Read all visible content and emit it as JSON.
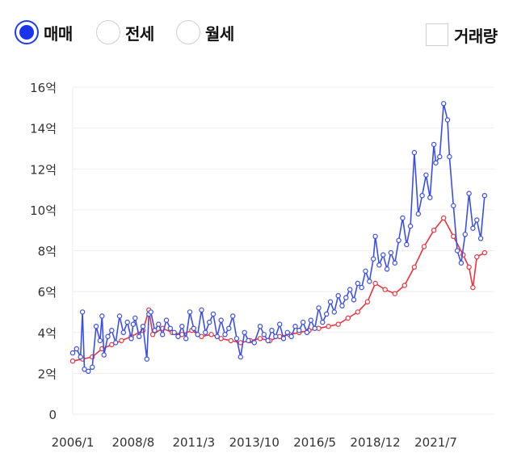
{
  "controls": {
    "radios": [
      {
        "label": "매매",
        "selected": true
      },
      {
        "label": "전세",
        "selected": false
      },
      {
        "label": "월세",
        "selected": false
      }
    ],
    "volume_checkbox": {
      "label": "거래량",
      "checked": false
    }
  },
  "colors": {
    "series_blue": "#3b4fe8",
    "series_red": "#e8343e",
    "grid": "#eeeeee",
    "axis_text": "#333333"
  },
  "chart_data": {
    "type": "line",
    "x_ticks": [
      "2006/1",
      "2008/8",
      "2011/3",
      "2013/10",
      "2016/5",
      "2018/12",
      "2021/7"
    ],
    "y_ticks": [
      "0",
      "2억",
      "4억",
      "6억",
      "8억",
      "10억",
      "12억",
      "14억",
      "16억"
    ],
    "ylim": [
      0,
      16
    ],
    "xlim": [
      "2006/1",
      "2024/1"
    ],
    "grid": true,
    "series": [
      {
        "color": "#3b4fe8",
        "points": [
          [
            "2006/1",
            3.0
          ],
          [
            "2006/3",
            3.2
          ],
          [
            "2006/5",
            2.8
          ],
          [
            "2006/6",
            5.0
          ],
          [
            "2006/7",
            2.2
          ],
          [
            "2006/9",
            2.1
          ],
          [
            "2006/11",
            2.3
          ],
          [
            "2007/1",
            4.3
          ],
          [
            "2007/3",
            3.6
          ],
          [
            "2007/4",
            4.8
          ],
          [
            "2007/5",
            2.9
          ],
          [
            "2007/7",
            3.8
          ],
          [
            "2007/9",
            4.1
          ],
          [
            "2007/11",
            3.5
          ],
          [
            "2008/1",
            4.8
          ],
          [
            "2008/3",
            4.0
          ],
          [
            "2008/5",
            4.5
          ],
          [
            "2008/7",
            3.7
          ],
          [
            "2008/8",
            4.4
          ],
          [
            "2008/9",
            4.7
          ],
          [
            "2008/11",
            3.8
          ],
          [
            "2009/1",
            4.3
          ],
          [
            "2009/3",
            2.7
          ],
          [
            "2009/4",
            4.9
          ],
          [
            "2009/5",
            5.0
          ],
          [
            "2009/7",
            4.1
          ],
          [
            "2009/9",
            4.4
          ],
          [
            "2009/11",
            3.9
          ],
          [
            "2010/1",
            4.6
          ],
          [
            "2010/3",
            4.2
          ],
          [
            "2010/5",
            4.0
          ],
          [
            "2010/7",
            3.8
          ],
          [
            "2010/9",
            4.3
          ],
          [
            "2010/11",
            3.7
          ],
          [
            "2011/1",
            5.0
          ],
          [
            "2011/3",
            4.2
          ],
          [
            "2011/5",
            3.9
          ],
          [
            "2011/7",
            5.1
          ],
          [
            "2011/9",
            4.0
          ],
          [
            "2011/11",
            4.5
          ],
          [
            "2012/1",
            4.9
          ],
          [
            "2012/3",
            3.8
          ],
          [
            "2012/5",
            4.6
          ],
          [
            "2012/7",
            3.9
          ],
          [
            "2012/9",
            4.2
          ],
          [
            "2012/11",
            4.8
          ],
          [
            "2013/1",
            3.7
          ],
          [
            "2013/3",
            2.8
          ],
          [
            "2013/5",
            4.0
          ],
          [
            "2013/7",
            3.6
          ],
          [
            "2013/10",
            3.5
          ],
          [
            "2014/1",
            4.3
          ],
          [
            "2014/3",
            3.9
          ],
          [
            "2014/5",
            3.6
          ],
          [
            "2014/7",
            4.1
          ],
          [
            "2014/9",
            3.8
          ],
          [
            "2014/11",
            4.4
          ],
          [
            "2015/1",
            3.7
          ],
          [
            "2015/3",
            4.0
          ],
          [
            "2015/5",
            3.8
          ],
          [
            "2015/7",
            4.3
          ],
          [
            "2015/9",
            4.1
          ],
          [
            "2015/11",
            4.5
          ],
          [
            "2016/1",
            4.0
          ],
          [
            "2016/3",
            4.6
          ],
          [
            "2016/5",
            4.2
          ],
          [
            "2016/7",
            5.2
          ],
          [
            "2016/9",
            4.5
          ],
          [
            "2016/11",
            4.9
          ],
          [
            "2017/1",
            5.5
          ],
          [
            "2017/3",
            5.0
          ],
          [
            "2017/5",
            5.8
          ],
          [
            "2017/7",
            5.3
          ],
          [
            "2017/9",
            5.7
          ],
          [
            "2017/11",
            6.1
          ],
          [
            "2018/1",
            5.6
          ],
          [
            "2018/3",
            6.4
          ],
          [
            "2018/5",
            6.2
          ],
          [
            "2018/7",
            7.0
          ],
          [
            "2018/9",
            6.5
          ],
          [
            "2018/11",
            7.6
          ],
          [
            "2018/12",
            8.7
          ],
          [
            "2019/2",
            7.3
          ],
          [
            "2019/4",
            7.8
          ],
          [
            "2019/6",
            7.1
          ],
          [
            "2019/8",
            7.9
          ],
          [
            "2019/10",
            7.4
          ],
          [
            "2019/12",
            8.5
          ],
          [
            "2020/2",
            9.6
          ],
          [
            "2020/4",
            8.3
          ],
          [
            "2020/6",
            9.2
          ],
          [
            "2020/8",
            12.8
          ],
          [
            "2020/10",
            9.8
          ],
          [
            "2020/12",
            10.7
          ],
          [
            "2021/2",
            11.7
          ],
          [
            "2021/4",
            10.6
          ],
          [
            "2021/6",
            13.2
          ],
          [
            "2021/7",
            12.3
          ],
          [
            "2021/9",
            12.6
          ],
          [
            "2021/11",
            15.2
          ],
          [
            "2022/1",
            14.4
          ],
          [
            "2022/2",
            12.6
          ],
          [
            "2022/4",
            10.2
          ],
          [
            "2022/6",
            8.0
          ],
          [
            "2022/8",
            7.4
          ],
          [
            "2022/10",
            8.8
          ],
          [
            "2022/12",
            10.8
          ],
          [
            "2023/2",
            9.1
          ],
          [
            "2023/4",
            9.5
          ],
          [
            "2023/6",
            8.6
          ],
          [
            "2023/8",
            10.7
          ]
        ]
      },
      {
        "color": "#e8343e",
        "points": [
          [
            "2006/1",
            2.6
          ],
          [
            "2006/6",
            2.7
          ],
          [
            "2006/11",
            2.8
          ],
          [
            "2007/4",
            3.2
          ],
          [
            "2007/9",
            3.4
          ],
          [
            "2008/2",
            3.6
          ],
          [
            "2008/7",
            3.8
          ],
          [
            "2009/1",
            4.1
          ],
          [
            "2009/4",
            5.1
          ],
          [
            "2009/6",
            3.9
          ],
          [
            "2009/11",
            4.2
          ],
          [
            "2010/4",
            4.0
          ],
          [
            "2010/9",
            3.9
          ],
          [
            "2011/2",
            4.1
          ],
          [
            "2011/7",
            3.8
          ],
          [
            "2011/12",
            3.9
          ],
          [
            "2012/5",
            3.7
          ],
          [
            "2012/10",
            3.6
          ],
          [
            "2013/3",
            3.5
          ],
          [
            "2013/8",
            3.6
          ],
          [
            "2014/1",
            3.7
          ],
          [
            "2014/6",
            3.6
          ],
          [
            "2014/11",
            3.8
          ],
          [
            "2015/4",
            3.9
          ],
          [
            "2015/9",
            4.0
          ],
          [
            "2016/2",
            4.1
          ],
          [
            "2016/7",
            4.2
          ],
          [
            "2016/12",
            4.3
          ],
          [
            "2017/5",
            4.4
          ],
          [
            "2017/10",
            4.7
          ],
          [
            "2018/3",
            5.0
          ],
          [
            "2018/8",
            5.5
          ],
          [
            "2018/12",
            6.4
          ],
          [
            "2019/5",
            6.1
          ],
          [
            "2019/10",
            5.9
          ],
          [
            "2020/3",
            6.3
          ],
          [
            "2020/8",
            7.2
          ],
          [
            "2021/1",
            8.2
          ],
          [
            "2021/6",
            9.0
          ],
          [
            "2021/11",
            9.6
          ],
          [
            "2022/4",
            8.7
          ],
          [
            "2022/9",
            7.8
          ],
          [
            "2022/12",
            7.2
          ],
          [
            "2023/2",
            6.2
          ],
          [
            "2023/4",
            7.7
          ],
          [
            "2023/8",
            7.9
          ]
        ]
      }
    ]
  }
}
